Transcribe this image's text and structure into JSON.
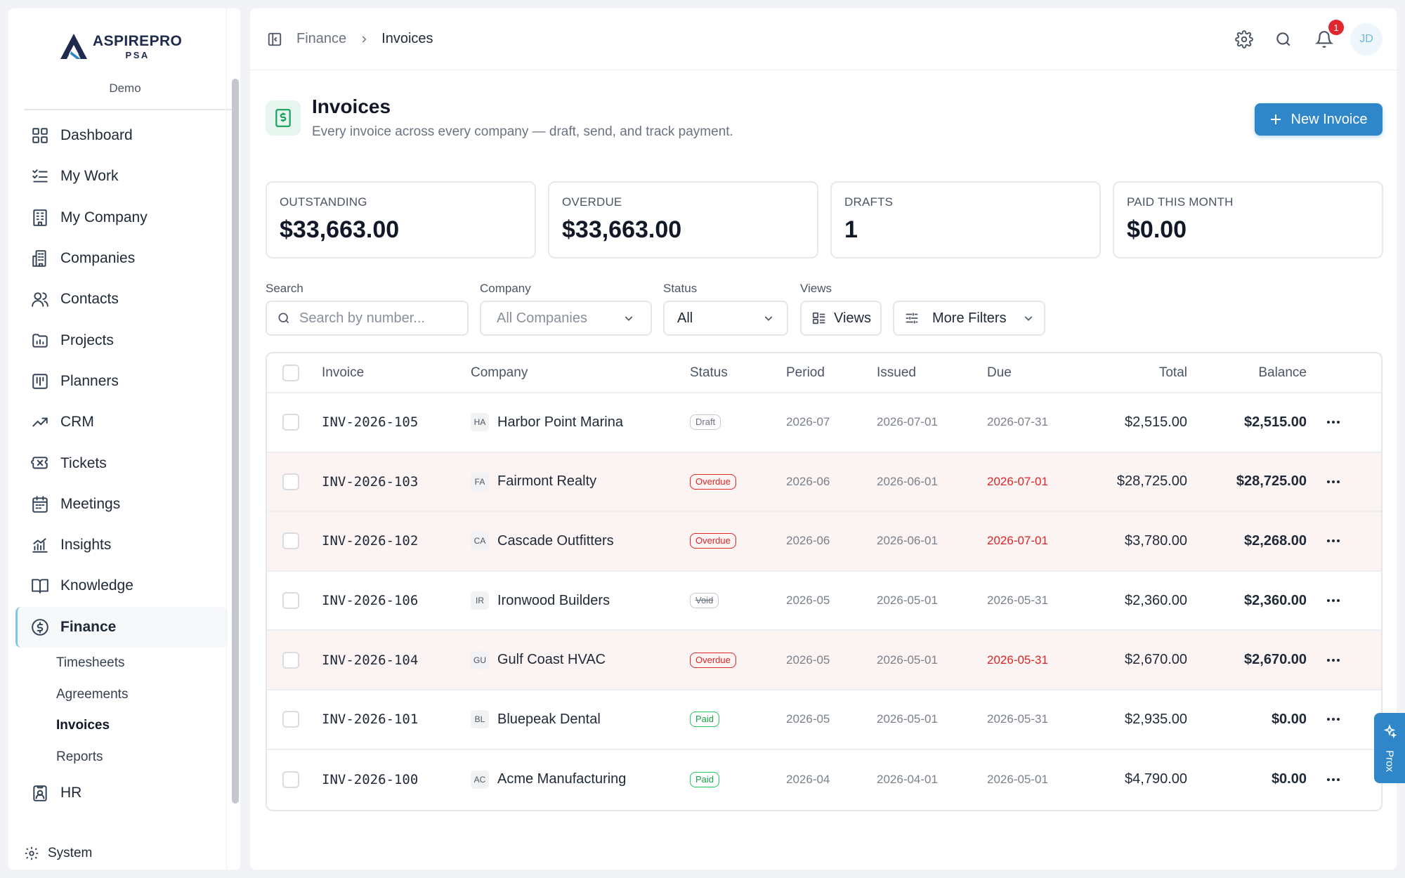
{
  "brand": {
    "name": "ASPIREPRO",
    "sub": "PSA"
  },
  "sidebar": {
    "tenant": "Demo",
    "items": [
      {
        "label": "Dashboard",
        "icon": "grid-icon"
      },
      {
        "label": "My Work",
        "icon": "checklist-icon"
      },
      {
        "label": "My Company",
        "icon": "building-icon"
      },
      {
        "label": "Companies",
        "icon": "buildings-icon"
      },
      {
        "label": "Contacts",
        "icon": "users-icon"
      },
      {
        "label": "Projects",
        "icon": "folder-chart-icon"
      },
      {
        "label": "Planners",
        "icon": "kanban-icon"
      },
      {
        "label": "CRM",
        "icon": "trend-up-icon"
      },
      {
        "label": "Tickets",
        "icon": "ticket-icon"
      },
      {
        "label": "Meetings",
        "icon": "calendar-icon"
      },
      {
        "label": "Insights",
        "icon": "bar-chart-icon"
      },
      {
        "label": "Knowledge",
        "icon": "book-icon"
      },
      {
        "label": "Finance",
        "icon": "dollar-circle-icon"
      }
    ],
    "finance_sub": [
      "Timesheets",
      "Agreements",
      "Invoices",
      "Reports"
    ],
    "hr": "HR",
    "system": "System"
  },
  "topbar": {
    "breadcrumb_parent": "Finance",
    "breadcrumb_current": "Invoices",
    "notification_count": "1",
    "avatar_initials": "JD"
  },
  "page": {
    "title": "Invoices",
    "subtitle": "Every invoice across every company — draft, send, and track payment.",
    "new_button": "New Invoice"
  },
  "stats": [
    {
      "label": "OUTSTANDING",
      "value": "$33,663.00"
    },
    {
      "label": "OVERDUE",
      "value": "$33,663.00"
    },
    {
      "label": "DRAFTS",
      "value": "1"
    },
    {
      "label": "PAID THIS MONTH",
      "value": "$0.00"
    }
  ],
  "filters": {
    "search_label": "Search",
    "search_placeholder": "Search by number...",
    "company_label": "Company",
    "company_value": "All Companies",
    "status_label": "Status",
    "status_value": "All",
    "views_label": "Views",
    "views_button": "Views",
    "more_filters": "More Filters"
  },
  "table": {
    "headers": [
      "Invoice",
      "Company",
      "Status",
      "Period",
      "Issued",
      "Due",
      "Total",
      "Balance"
    ],
    "rows": [
      {
        "invoice": "INV-2026-105",
        "badge": "HA",
        "company": "Harbor Point Marina",
        "status": "Draft",
        "period": "2026-07",
        "issued": "2026-07-01",
        "due": "2026-07-31",
        "total": "$2,515.00",
        "balance": "$2,515.00"
      },
      {
        "invoice": "INV-2026-103",
        "badge": "FA",
        "company": "Fairmont Realty",
        "status": "Overdue",
        "period": "2026-06",
        "issued": "2026-06-01",
        "due": "2026-07-01",
        "total": "$28,725.00",
        "balance": "$28,725.00"
      },
      {
        "invoice": "INV-2026-102",
        "badge": "CA",
        "company": "Cascade Outfitters",
        "status": "Overdue",
        "period": "2026-06",
        "issued": "2026-06-01",
        "due": "2026-07-01",
        "total": "$3,780.00",
        "balance": "$2,268.00"
      },
      {
        "invoice": "INV-2026-106",
        "badge": "IR",
        "company": "Ironwood Builders",
        "status": "Void",
        "period": "2026-05",
        "issued": "2026-05-01",
        "due": "2026-05-31",
        "total": "$2,360.00",
        "balance": "$2,360.00"
      },
      {
        "invoice": "INV-2026-104",
        "badge": "GU",
        "company": "Gulf Coast HVAC",
        "status": "Overdue",
        "period": "2026-05",
        "issued": "2026-05-01",
        "due": "2026-05-31",
        "total": "$2,670.00",
        "balance": "$2,670.00"
      },
      {
        "invoice": "INV-2026-101",
        "badge": "BL",
        "company": "Bluepeak Dental",
        "status": "Paid",
        "period": "2026-05",
        "issued": "2026-05-01",
        "due": "2026-05-31",
        "total": "$2,935.00",
        "balance": "$0.00"
      },
      {
        "invoice": "INV-2026-100",
        "badge": "AC",
        "company": "Acme Manufacturing",
        "status": "Paid",
        "period": "2026-04",
        "issued": "2026-04-01",
        "due": "2026-05-01",
        "total": "$4,790.00",
        "balance": "$0.00"
      }
    ]
  },
  "assistant_tab": {
    "label": "Prox",
    "icon": "sparkle-icon"
  },
  "colors": {
    "accent": "#2f86c8",
    "overdue": "#dc2626",
    "paid": "#16a34a",
    "finance_icon_bg": "#e6f6ee"
  }
}
